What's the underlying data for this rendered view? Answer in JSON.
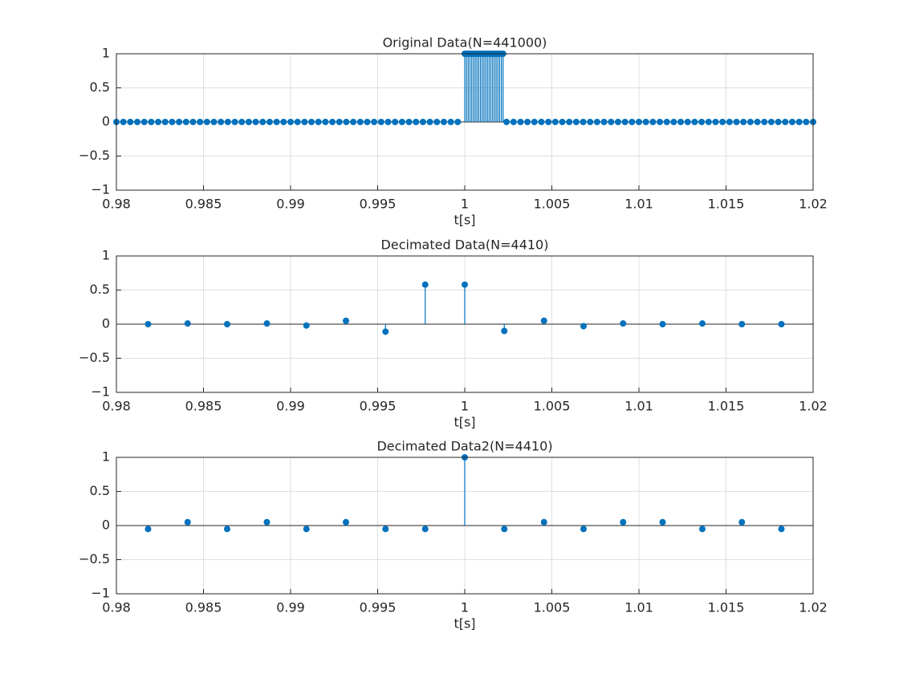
{
  "chart_data": [
    {
      "type": "stem",
      "title": "Original Data(N=441000)",
      "xlabel": "t[s]",
      "color": "#0072bd",
      "grid": true,
      "xlim": [
        0.98,
        1.02
      ],
      "ylim": [
        -1,
        1
      ],
      "xticks": [
        0.98,
        0.985,
        0.99,
        0.995,
        1,
        1.005,
        1.01,
        1.015,
        1.02
      ],
      "yticks": [
        {
          "value": -1,
          "label": "−1"
        },
        {
          "value": -0.5,
          "label": "−0.5"
        },
        0,
        0.5,
        1
      ],
      "x": [
        0.98,
        0.9804,
        0.9808,
        0.9812,
        0.9816,
        0.982,
        0.9824,
        0.9828,
        0.9832,
        0.9836,
        0.984,
        0.9844,
        0.9848,
        0.9852,
        0.9856,
        0.986,
        0.9864,
        0.9868,
        0.9872,
        0.9876,
        0.988,
        0.9884,
        0.9888,
        0.9892,
        0.9896,
        0.99,
        0.9904,
        0.9908,
        0.9912,
        0.9916,
        0.992,
        0.9924,
        0.9928,
        0.9932,
        0.9936,
        0.994,
        0.9944,
        0.9948,
        0.9952,
        0.9956,
        0.996,
        0.9964,
        0.9968,
        0.9972,
        0.9976,
        0.998,
        0.9984,
        0.9988,
        0.9992,
        0.9996,
        1,
        1.0001,
        1.0002,
        1.0003,
        1.0004,
        1.0005,
        1.0006,
        1.0007,
        1.0008,
        1.0009,
        1.001,
        1.0011,
        1.0012,
        1.0013,
        1.0014,
        1.0015,
        1.0016,
        1.0017,
        1.0018,
        1.0019,
        1.002,
        1.0021,
        1.0022,
        1.0024,
        1.0028,
        1.0032,
        1.0036,
        1.004,
        1.0044,
        1.0048,
        1.0052,
        1.0056,
        1.006,
        1.0064,
        1.0068,
        1.0072,
        1.0076,
        1.008,
        1.0084,
        1.0088,
        1.0092,
        1.0096,
        1.01,
        1.0104,
        1.0108,
        1.0112,
        1.0116,
        1.012,
        1.0124,
        1.0128,
        1.0132,
        1.0136,
        1.014,
        1.0144,
        1.0148,
        1.0152,
        1.0156,
        1.016,
        1.0164,
        1.0168,
        1.0172,
        1.0176,
        1.018,
        1.0184,
        1.0188,
        1.0192,
        1.0196,
        1.02
      ],
      "values": [
        0,
        0,
        0,
        0,
        0,
        0,
        0,
        0,
        0,
        0,
        0,
        0,
        0,
        0,
        0,
        0,
        0,
        0,
        0,
        0,
        0,
        0,
        0,
        0,
        0,
        0,
        0,
        0,
        0,
        0,
        0,
        0,
        0,
        0,
        0,
        0,
        0,
        0,
        0,
        0,
        0,
        0,
        0,
        0,
        0,
        0,
        0,
        0,
        0,
        0,
        1,
        1,
        1,
        1,
        1,
        1,
        1,
        1,
        1,
        1,
        1,
        1,
        1,
        1,
        1,
        1,
        1,
        1,
        1,
        1,
        1,
        1,
        1,
        0,
        0,
        0,
        0,
        0,
        0,
        0,
        0,
        0,
        0,
        0,
        0,
        0,
        0,
        0,
        0,
        0,
        0,
        0,
        0,
        0,
        0,
        0,
        0,
        0,
        0,
        0,
        0,
        0,
        0,
        0,
        0,
        0,
        0,
        0,
        0,
        0,
        0,
        0,
        0,
        0,
        0,
        0,
        0,
        0
      ]
    },
    {
      "type": "stem",
      "title": "Decimated Data(N=4410)",
      "xlabel": "t[s]",
      "color": "#0072bd",
      "grid": true,
      "xlim": [
        0.98,
        1.02
      ],
      "ylim": [
        -1,
        1
      ],
      "xticks": [
        0.98,
        0.985,
        0.99,
        0.995,
        1,
        1.005,
        1.01,
        1.015,
        1.02
      ],
      "yticks": [
        {
          "value": -1,
          "label": "−1"
        },
        {
          "value": -0.5,
          "label": "−0.5"
        },
        0,
        0.5,
        1
      ],
      "x": [
        0.98182,
        0.98409,
        0.98636,
        0.98864,
        0.99091,
        0.99318,
        0.99545,
        0.99773,
        1,
        1.00227,
        1.00455,
        1.00682,
        1.00909,
        1.01136,
        1.01364,
        1.01591,
        1.01818
      ],
      "values": [
        0,
        0.01,
        0,
        0.01,
        -0.02,
        0.05,
        -0.11,
        0.58,
        0.58,
        -0.1,
        0.05,
        -0.03,
        0.01,
        0,
        0.01,
        0,
        0
      ]
    },
    {
      "type": "stem",
      "title": "Decimated Data2(N=4410)",
      "xlabel": "t[s]",
      "color": "#0072bd",
      "grid": true,
      "xlim": [
        0.98,
        1.02
      ],
      "ylim": [
        -1,
        1
      ],
      "xticks": [
        0.98,
        0.985,
        0.99,
        0.995,
        1,
        1.005,
        1.01,
        1.015,
        1.02
      ],
      "yticks": [
        {
          "value": -1,
          "label": "−1"
        },
        {
          "value": -0.5,
          "label": "−0.5"
        },
        0,
        0.5,
        1
      ],
      "x": [
        0.98182,
        0.98409,
        0.98636,
        0.98864,
        0.99091,
        0.99318,
        0.99545,
        0.99773,
        1,
        1.00227,
        1.00455,
        1.00682,
        1.00909,
        1.01136,
        1.01364,
        1.01591,
        1.01818
      ],
      "values": [
        -0.05,
        0.05,
        -0.05,
        0.05,
        -0.05,
        0.05,
        -0.05,
        -0.05,
        1,
        -0.05,
        0.05,
        -0.05,
        0.05,
        0.05,
        -0.05,
        0.05,
        -0.05
      ]
    }
  ]
}
